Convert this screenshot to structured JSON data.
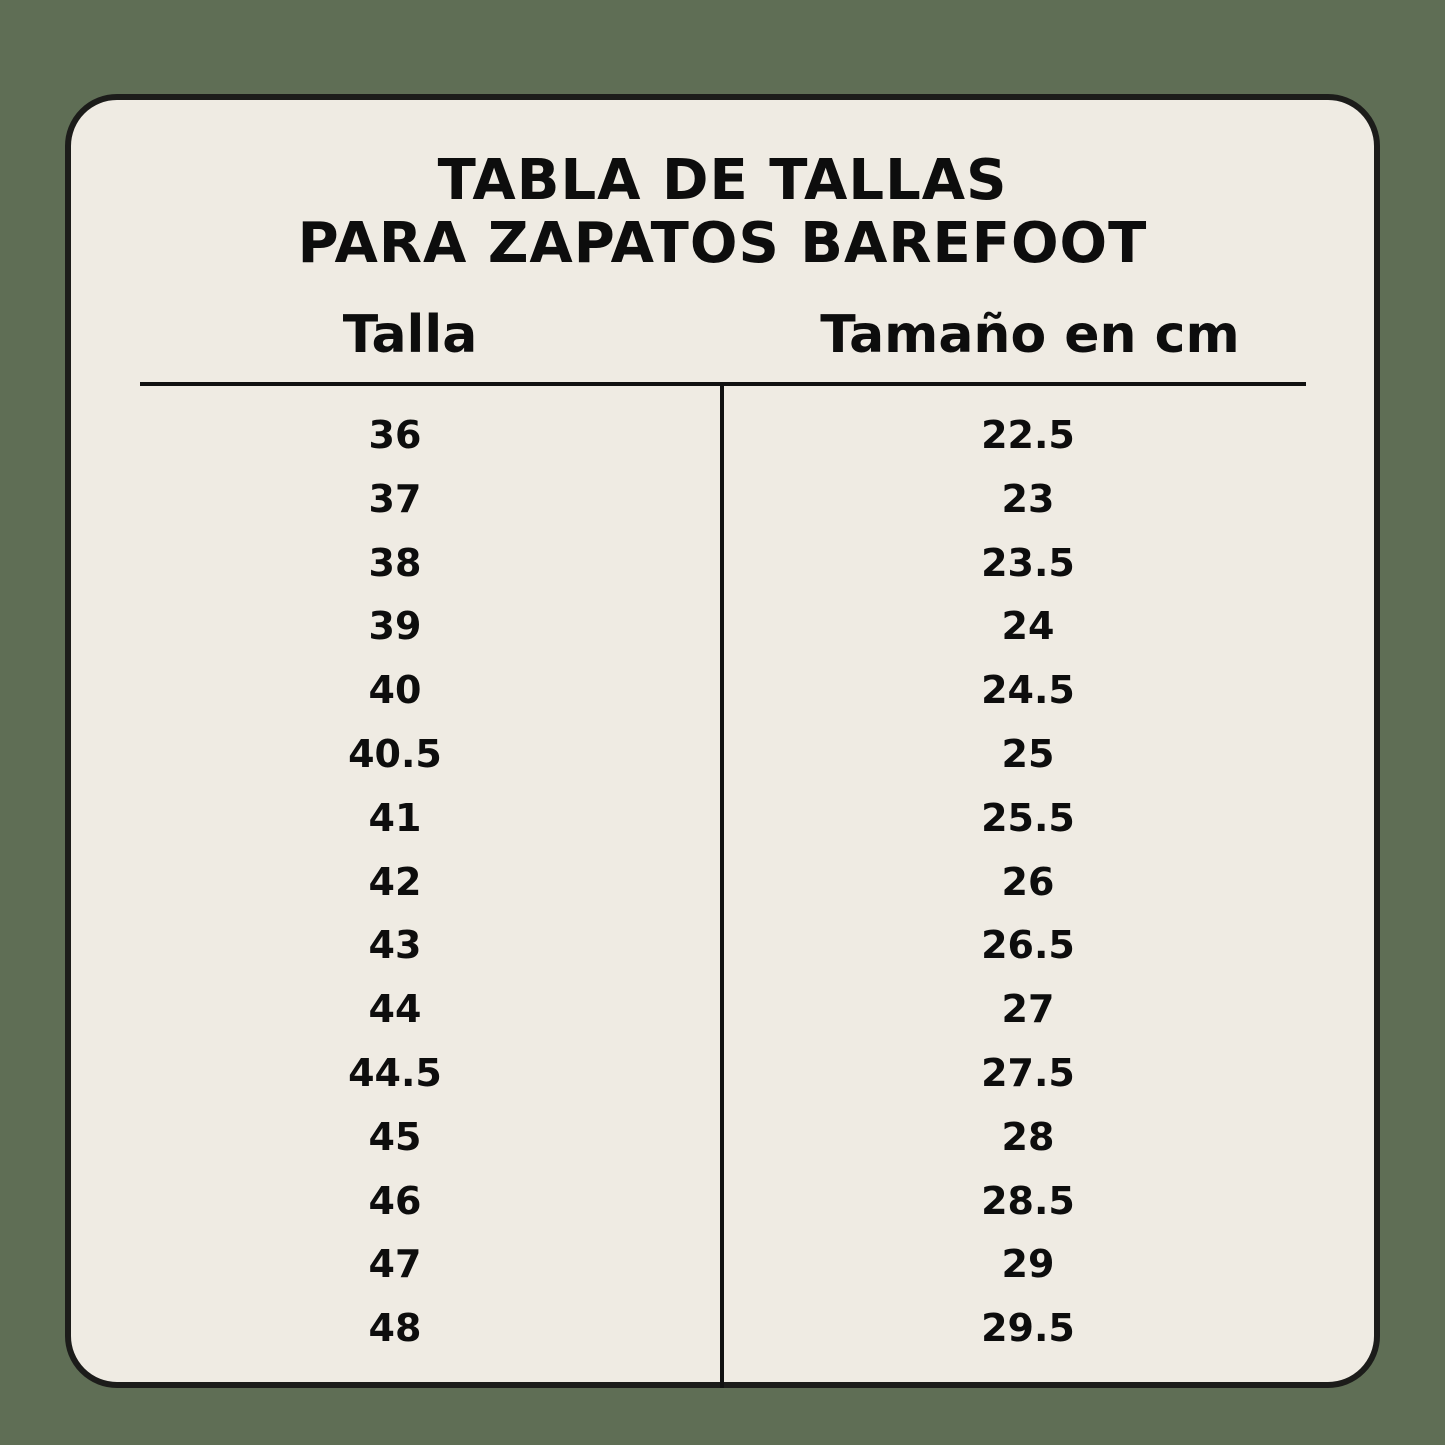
{
  "title": {
    "line1": "TABLA DE TALLAS",
    "line2": "PARA ZAPATOS BAREFOOT"
  },
  "headers": {
    "size": "Talla",
    "length": "Tamaño en cm"
  },
  "rows": [
    {
      "talla": "36",
      "cm": "22.5"
    },
    {
      "talla": "37",
      "cm": "23"
    },
    {
      "talla": "38",
      "cm": "23.5"
    },
    {
      "talla": "39",
      "cm": "24"
    },
    {
      "talla": "40",
      "cm": "24.5"
    },
    {
      "talla": "40.5",
      "cm": "25"
    },
    {
      "talla": "41",
      "cm": "25.5"
    },
    {
      "talla": "42",
      "cm": "26"
    },
    {
      "talla": "43",
      "cm": "26.5"
    },
    {
      "talla": "44",
      "cm": "27"
    },
    {
      "talla": "44.5",
      "cm": "27.5"
    },
    {
      "talla": "45",
      "cm": "28"
    },
    {
      "talla": "46",
      "cm": "28.5"
    },
    {
      "talla": "47",
      "cm": "29"
    },
    {
      "talla": "48",
      "cm": "29.5"
    }
  ],
  "colors": {
    "background": "#5f6e55",
    "card": "#efebe3",
    "text": "#0d0d0d"
  }
}
